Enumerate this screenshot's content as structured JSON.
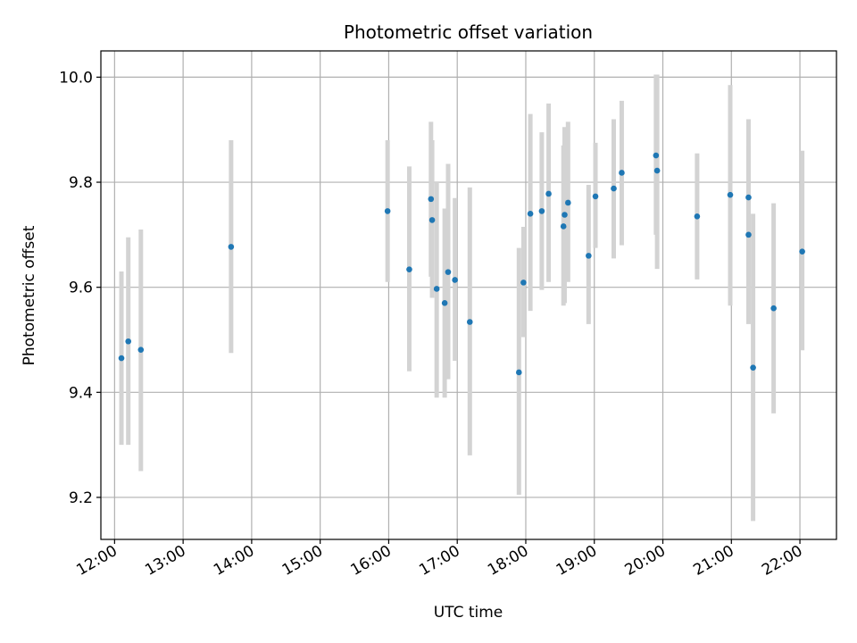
{
  "chart_data": {
    "type": "scatter",
    "title": "Photometric offset variation",
    "xlabel": "UTC time",
    "ylabel": "Photometric offset",
    "x_axis_type": "time",
    "xlim": [
      "11:48",
      "22:32"
    ],
    "ylim": [
      9.12,
      10.05
    ],
    "x_ticks": [
      "12:00",
      "13:00",
      "14:00",
      "15:00",
      "16:00",
      "17:00",
      "18:00",
      "19:00",
      "20:00",
      "21:00",
      "22:00"
    ],
    "y_ticks": [
      9.2,
      9.4,
      9.6,
      9.8,
      10.0
    ],
    "y_tick_labels": [
      "9.2",
      "9.4",
      "9.6",
      "9.8",
      "10.0"
    ],
    "grid": true,
    "colors": {
      "marker": "#1f77b4",
      "errorbar": "#d3d3d3",
      "grid": "#b0b0b0"
    },
    "points": [
      {
        "x": "12:06",
        "y": 9.465,
        "ymin": 9.3,
        "ymax": 9.63
      },
      {
        "x": "12:12",
        "y": 9.497,
        "ymin": 9.3,
        "ymax": 9.695
      },
      {
        "x": "12:23",
        "y": 9.481,
        "ymin": 9.25,
        "ymax": 9.71
      },
      {
        "x": "13:42",
        "y": 9.677,
        "ymin": 9.475,
        "ymax": 9.88
      },
      {
        "x": "15:59",
        "y": 9.745,
        "ymin": 9.61,
        "ymax": 9.88
      },
      {
        "x": "16:18",
        "y": 9.634,
        "ymin": 9.44,
        "ymax": 9.83
      },
      {
        "x": "16:37",
        "y": 9.768,
        "ymin": 9.62,
        "ymax": 9.915
      },
      {
        "x": "16:38",
        "y": 9.728,
        "ymin": 9.58,
        "ymax": 9.88
      },
      {
        "x": "16:42",
        "y": 9.597,
        "ymin": 9.39,
        "ymax": 9.8
      },
      {
        "x": "16:49",
        "y": 9.57,
        "ymin": 9.39,
        "ymax": 9.75
      },
      {
        "x": "16:52",
        "y": 9.629,
        "ymin": 9.425,
        "ymax": 9.835
      },
      {
        "x": "16:58",
        "y": 9.614,
        "ymin": 9.46,
        "ymax": 9.77
      },
      {
        "x": "17:11",
        "y": 9.534,
        "ymin": 9.28,
        "ymax": 9.79
      },
      {
        "x": "17:54",
        "y": 9.438,
        "ymin": 9.205,
        "ymax": 9.675
      },
      {
        "x": "17:58",
        "y": 9.609,
        "ymin": 9.505,
        "ymax": 9.715
      },
      {
        "x": "18:04",
        "y": 9.74,
        "ymin": 9.555,
        "ymax": 9.93
      },
      {
        "x": "18:14",
        "y": 9.745,
        "ymin": 9.595,
        "ymax": 9.895
      },
      {
        "x": "18:20",
        "y": 9.778,
        "ymin": 9.61,
        "ymax": 9.95
      },
      {
        "x": "18:33",
        "y": 9.716,
        "ymin": 9.565,
        "ymax": 9.87
      },
      {
        "x": "18:34",
        "y": 9.738,
        "ymin": 9.57,
        "ymax": 9.905
      },
      {
        "x": "18:37",
        "y": 9.761,
        "ymin": 9.61,
        "ymax": 9.915
      },
      {
        "x": "18:55",
        "y": 9.66,
        "ymin": 9.53,
        "ymax": 9.795
      },
      {
        "x": "19:01",
        "y": 9.773,
        "ymin": 9.675,
        "ymax": 9.875
      },
      {
        "x": "19:17",
        "y": 9.788,
        "ymin": 9.655,
        "ymax": 9.92
      },
      {
        "x": "19:24",
        "y": 9.818,
        "ymin": 9.68,
        "ymax": 9.955
      },
      {
        "x": "19:54",
        "y": 9.851,
        "ymin": 9.7,
        "ymax": 10.005
      },
      {
        "x": "19:55",
        "y": 9.822,
        "ymin": 9.635,
        "ymax": 10.005
      },
      {
        "x": "20:30",
        "y": 9.735,
        "ymin": 9.615,
        "ymax": 9.855
      },
      {
        "x": "20:59",
        "y": 9.776,
        "ymin": 9.565,
        "ymax": 9.985
      },
      {
        "x": "21:15",
        "y": 9.771,
        "ymin": 9.62,
        "ymax": 9.92
      },
      {
        "x": "21:15",
        "y": 9.7,
        "ymin": 9.53,
        "ymax": 9.87
      },
      {
        "x": "21:19",
        "y": 9.447,
        "ymin": 9.155,
        "ymax": 9.74
      },
      {
        "x": "21:37",
        "y": 9.56,
        "ymin": 9.36,
        "ymax": 9.76
      },
      {
        "x": "22:02",
        "y": 9.668,
        "ymin": 9.48,
        "ymax": 9.86
      }
    ]
  }
}
